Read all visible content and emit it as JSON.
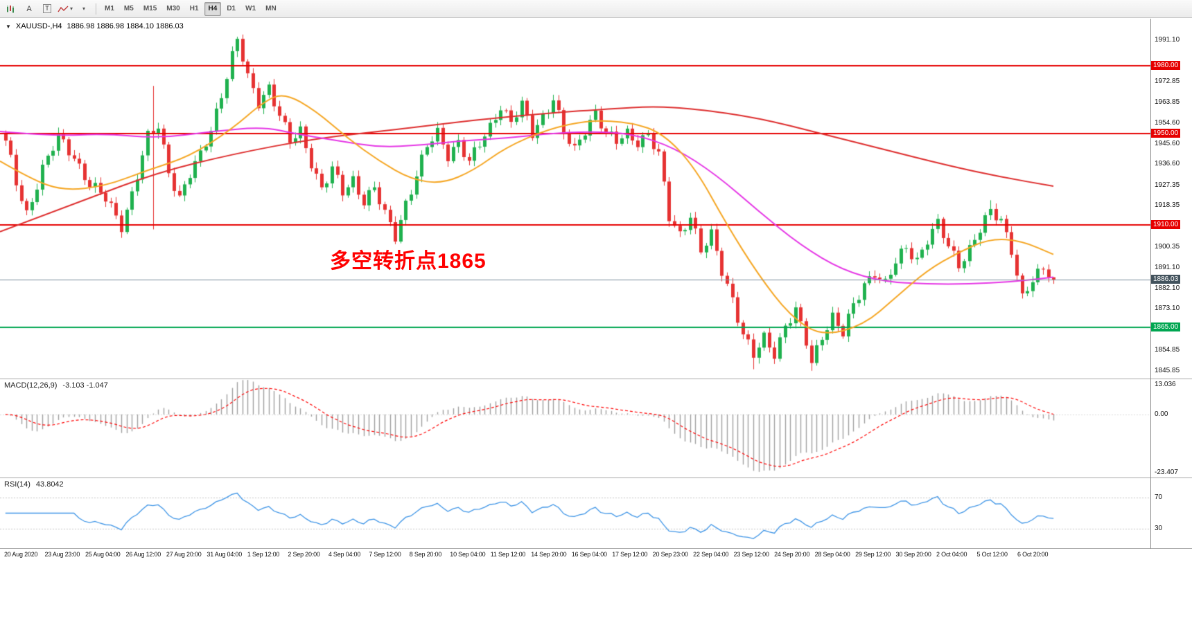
{
  "toolbar": {
    "cursor_label": "A",
    "text_label": "T",
    "caret_glyph": "▾",
    "timeframes": [
      "M1",
      "M5",
      "M15",
      "M30",
      "H1",
      "H4",
      "D1",
      "W1",
      "MN"
    ],
    "active_timeframe": "H4"
  },
  "chart_header": {
    "dropdown_glyph": "▼",
    "symbol": "XAUUSD-,H4",
    "ohlc": "1886.98 1886.98 1884.10 1886.03"
  },
  "annotation": {
    "text": "多空转折点1865"
  },
  "colors": {
    "up": "#1fb14e",
    "down": "#e63232",
    "hline_red": "#e60000",
    "hline_green": "#00a651",
    "current_line": "#7d8f9c",
    "current_badge_bg": "#42525c",
    "macd_hist": "#9f9f9f",
    "macd_signal": "#ff0000",
    "rsi": "#3d94e6"
  },
  "chart_data": {
    "type": "candlestick",
    "symbol": "XAUUSD",
    "timeframe": "H4",
    "n_candles": 200,
    "current_price": 1886.03,
    "prev_close": 1886.98,
    "ohlc_last": {
      "open": 1886.98,
      "high": 1886.98,
      "low": 1884.1,
      "close": 1886.03
    },
    "y_axis": {
      "ticks": [
        1991.1,
        1972.85,
        1963.85,
        1954.6,
        1945.6,
        1936.6,
        1927.35,
        1918.35,
        1900.35,
        1891.1,
        1882.1,
        1873.1,
        1854.85,
        1845.85
      ]
    },
    "hlines": [
      {
        "price": 1980.0,
        "label": "1980.00",
        "color": "#e60000"
      },
      {
        "price": 1950.0,
        "label": "1950.00",
        "color": "#e60000"
      },
      {
        "price": 1910.0,
        "label": "1910.00",
        "color": "#e60000"
      },
      {
        "price": 1865.0,
        "label": "1865.00",
        "color": "#00a651"
      }
    ],
    "close_waypoints": [
      [
        0,
        1947
      ],
      [
        2,
        1928
      ],
      [
        4,
        1915
      ],
      [
        7,
        1935
      ],
      [
        10,
        1948
      ],
      [
        13,
        1940
      ],
      [
        16,
        1928
      ],
      [
        19,
        1921
      ],
      [
        22,
        1910
      ],
      [
        24,
        1924
      ],
      [
        27,
        1948
      ],
      [
        29,
        1953
      ],
      [
        31,
        1934
      ],
      [
        33,
        1922
      ],
      [
        35,
        1932
      ],
      [
        37,
        1940
      ],
      [
        39,
        1952
      ],
      [
        41,
        1968
      ],
      [
        43,
        1984
      ],
      [
        44,
        1991
      ],
      [
        46,
        1974
      ],
      [
        48,
        1964
      ],
      [
        50,
        1971
      ],
      [
        52,
        1958
      ],
      [
        54,
        1946
      ],
      [
        56,
        1951
      ],
      [
        58,
        1938
      ],
      [
        60,
        1926
      ],
      [
        62,
        1934
      ],
      [
        64,
        1924
      ],
      [
        66,
        1930
      ],
      [
        68,
        1921
      ],
      [
        70,
        1926
      ],
      [
        72,
        1914
      ],
      [
        74,
        1905
      ],
      [
        76,
        1920
      ],
      [
        78,
        1932
      ],
      [
        80,
        1944
      ],
      [
        82,
        1950
      ],
      [
        84,
        1941
      ],
      [
        86,
        1947
      ],
      [
        88,
        1937
      ],
      [
        90,
        1945
      ],
      [
        92,
        1953
      ],
      [
        94,
        1963
      ],
      [
        96,
        1955
      ],
      [
        98,
        1962
      ],
      [
        100,
        1950
      ],
      [
        102,
        1958
      ],
      [
        104,
        1966
      ],
      [
        106,
        1950
      ],
      [
        108,
        1942
      ],
      [
        110,
        1952
      ],
      [
        112,
        1960
      ],
      [
        114,
        1950
      ],
      [
        116,
        1946
      ],
      [
        118,
        1950
      ],
      [
        120,
        1947
      ],
      [
        122,
        1950
      ],
      [
        124,
        1940
      ],
      [
        126,
        1913
      ],
      [
        128,
        1906
      ],
      [
        130,
        1915
      ],
      [
        132,
        1898
      ],
      [
        134,
        1905
      ],
      [
        136,
        1890
      ],
      [
        138,
        1878
      ],
      [
        140,
        1862
      ],
      [
        142,
        1852
      ],
      [
        144,
        1860
      ],
      [
        146,
        1854
      ],
      [
        148,
        1866
      ],
      [
        150,
        1872
      ],
      [
        152,
        1858
      ],
      [
        153,
        1849
      ],
      [
        155,
        1862
      ],
      [
        157,
        1870
      ],
      [
        159,
        1862
      ],
      [
        161,
        1874
      ],
      [
        163,
        1884
      ],
      [
        165,
        1890
      ],
      [
        167,
        1884
      ],
      [
        169,
        1893
      ],
      [
        171,
        1900
      ],
      [
        173,
        1895
      ],
      [
        175,
        1904
      ],
      [
        177,
        1910
      ],
      [
        179,
        1900
      ],
      [
        181,
        1893
      ],
      [
        183,
        1900
      ],
      [
        185,
        1908
      ],
      [
        187,
        1915
      ],
      [
        189,
        1912
      ],
      [
        191,
        1900
      ],
      [
        193,
        1878
      ],
      [
        195,
        1885
      ],
      [
        197,
        1890
      ],
      [
        199,
        1886.03
      ]
    ],
    "special_wicks": [
      {
        "i": 28,
        "high": 1971.0,
        "low": 1908.0
      },
      {
        "i": 44,
        "high": 1992.6
      },
      {
        "i": 74,
        "low": 1901.5
      },
      {
        "i": 142,
        "low": 1846.6
      },
      {
        "i": 153,
        "low": 1845.9
      },
      {
        "i": 187,
        "high": 1920.8
      },
      {
        "i": 199,
        "high": 1886.98,
        "low": 1884.1
      }
    ],
    "ma_lines": [
      {
        "name": "ma-slow-red",
        "color": "#dd2c2c",
        "points": [
          [
            0,
            1907
          ],
          [
            0.08,
            1921
          ],
          [
            0.15,
            1933
          ],
          [
            0.22,
            1941
          ],
          [
            0.3,
            1948
          ],
          [
            0.38,
            1952
          ],
          [
            0.45,
            1956
          ],
          [
            0.52,
            1959
          ],
          [
            0.58,
            1961
          ],
          [
            0.62,
            1962
          ],
          [
            0.66,
            1961
          ],
          [
            0.72,
            1957
          ],
          [
            0.78,
            1950
          ],
          [
            0.84,
            1943
          ],
          [
            0.9,
            1936
          ],
          [
            0.95,
            1931
          ],
          [
            1,
            1927
          ]
        ]
      },
      {
        "name": "ma-mid-magenta",
        "color": "#e535e5",
        "points": [
          [
            0,
            1951
          ],
          [
            0.05,
            1949
          ],
          [
            0.1,
            1950
          ],
          [
            0.15,
            1948
          ],
          [
            0.2,
            1951
          ],
          [
            0.25,
            1953
          ],
          [
            0.28,
            1950
          ],
          [
            0.32,
            1947
          ],
          [
            0.36,
            1944
          ],
          [
            0.4,
            1945
          ],
          [
            0.44,
            1947
          ],
          [
            0.48,
            1948
          ],
          [
            0.52,
            1950
          ],
          [
            0.56,
            1951
          ],
          [
            0.6,
            1950
          ],
          [
            0.64,
            1944
          ],
          [
            0.68,
            1932
          ],
          [
            0.72,
            1916
          ],
          [
            0.76,
            1901
          ],
          [
            0.8,
            1890
          ],
          [
            0.84,
            1885
          ],
          [
            0.88,
            1884
          ],
          [
            0.92,
            1884
          ],
          [
            0.96,
            1885
          ],
          [
            1,
            1887
          ]
        ]
      },
      {
        "name": "ma-fast-orange",
        "color": "#f5a623",
        "points": [
          [
            0,
            1938
          ],
          [
            0.03,
            1930
          ],
          [
            0.06,
            1925
          ],
          [
            0.1,
            1927
          ],
          [
            0.14,
            1934
          ],
          [
            0.18,
            1940
          ],
          [
            0.22,
            1952
          ],
          [
            0.25,
            1964
          ],
          [
            0.27,
            1968
          ],
          [
            0.3,
            1960
          ],
          [
            0.33,
            1948
          ],
          [
            0.36,
            1938
          ],
          [
            0.39,
            1930
          ],
          [
            0.42,
            1928
          ],
          [
            0.45,
            1934
          ],
          [
            0.48,
            1944
          ],
          [
            0.52,
            1952
          ],
          [
            0.56,
            1956
          ],
          [
            0.6,
            1955
          ],
          [
            0.63,
            1950
          ],
          [
            0.66,
            1935
          ],
          [
            0.69,
            1910
          ],
          [
            0.72,
            1888
          ],
          [
            0.75,
            1870
          ],
          [
            0.78,
            1861
          ],
          [
            0.82,
            1866
          ],
          [
            0.85,
            1878
          ],
          [
            0.88,
            1890
          ],
          [
            0.91,
            1898
          ],
          [
            0.94,
            1904
          ],
          [
            0.97,
            1903
          ],
          [
            1,
            1897
          ]
        ]
      }
    ],
    "macd": {
      "label": "MACD(12,26,9)",
      "values_label": "-3.103 -1.047",
      "max": 13.036,
      "min": -23.407,
      "axis": [
        "13.036",
        "0.00",
        "-23.407"
      ]
    },
    "rsi": {
      "label": "RSI(14)",
      "value_label": "43.8042",
      "levels": [
        70,
        30
      ],
      "range": [
        5,
        95
      ]
    },
    "x_labels": [
      "20 Aug 2020",
      "23 Aug 23:00",
      "25 Aug 04:00",
      "26 Aug 12:00",
      "27 Aug 20:00",
      "31 Aug 04:00",
      "1 Sep 12:00",
      "2 Sep 20:00",
      "4 Sep 04:00",
      "7 Sep 12:00",
      "8 Sep 20:00",
      "10 Sep 04:00",
      "11 Sep 12:00",
      "14 Sep 20:00",
      "16 Sep 04:00",
      "17 Sep 12:00",
      "20 Sep 23:00",
      "22 Sep 04:00",
      "23 Sep 12:00",
      "24 Sep 20:00",
      "28 Sep 04:00",
      "29 Sep 12:00",
      "30 Sep 20:00",
      "2 Oct 04:00",
      "5 Oct 12:00",
      "6 Oct 20:00"
    ]
  }
}
